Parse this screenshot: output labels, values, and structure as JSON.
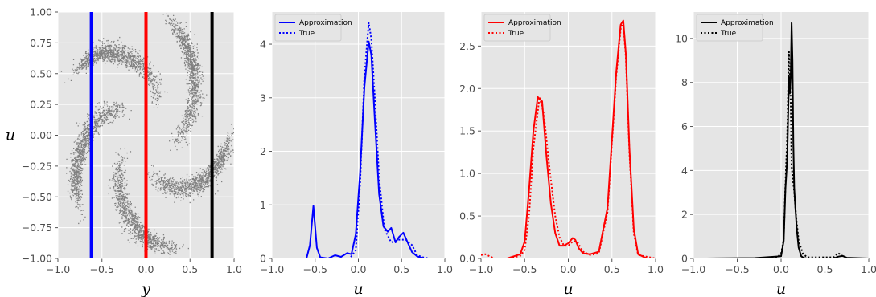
{
  "chart_data": [
    {
      "type": "scatter",
      "xlabel": "y",
      "ylabel": "u",
      "xlim": [
        -1.0,
        1.0
      ],
      "ylim": [
        -1.0,
        1.0
      ],
      "xticks": [
        "−1.0",
        "−0.5",
        "0.0",
        "0.5",
        "1.0"
      ],
      "yticks": [
        "1.00",
        "0.75",
        "0.50",
        "0.25",
        "0.00",
        "−0.25",
        "−0.50",
        "−0.75",
        "−1.00"
      ],
      "grid": true,
      "pinwheel": {
        "arms": 5,
        "color": "#808080"
      },
      "vlines": [
        {
          "x": -0.62,
          "color": "#0000ff"
        },
        {
          "x": 0.0,
          "color": "#ff0000"
        },
        {
          "x": 0.75,
          "color": "#000000"
        }
      ]
    },
    {
      "type": "line",
      "xlabel": "u",
      "xlim": [
        -1.0,
        1.0
      ],
      "ylim": [
        0,
        4.6
      ],
      "xticks": [
        "−1.0",
        "−0.5",
        "0.0",
        "0.5",
        "1.0"
      ],
      "yticks": [
        "0",
        "1",
        "2",
        "3",
        "4"
      ],
      "color": "#0000ff",
      "legend": {
        "position": "top-left",
        "entries": [
          "Approximation",
          "True"
        ]
      },
      "series": [
        {
          "name": "Approximation",
          "style": "solid",
          "x": [
            -1.0,
            -0.6,
            -0.56,
            -0.52,
            -0.48,
            -0.44,
            -0.35,
            -0.27,
            -0.2,
            -0.13,
            -0.08,
            -0.03,
            0.02,
            0.07,
            0.12,
            0.15,
            0.19,
            0.24,
            0.29,
            0.34,
            0.38,
            0.43,
            0.47,
            0.52,
            0.57,
            0.62,
            0.68,
            0.75,
            1.0
          ],
          "y": [
            0,
            0,
            0.25,
            0.98,
            0.2,
            0.02,
            0.0,
            0.06,
            0.03,
            0.1,
            0.08,
            0.45,
            1.6,
            3.2,
            4.05,
            3.8,
            2.6,
            1.2,
            0.6,
            0.5,
            0.57,
            0.3,
            0.4,
            0.48,
            0.3,
            0.12,
            0.04,
            0.0,
            0
          ]
        },
        {
          "name": "True",
          "style": "dotted",
          "x": [
            -1.0,
            -0.1,
            -0.03,
            0.02,
            0.07,
            0.12,
            0.15,
            0.19,
            0.24,
            0.3,
            0.38,
            0.47,
            0.55,
            0.62,
            0.68,
            0.75,
            0.82,
            1.0
          ],
          "y": [
            0,
            0,
            0.15,
            1.4,
            3.4,
            4.4,
            4.1,
            3.0,
            1.5,
            0.55,
            0.3,
            0.35,
            0.35,
            0.25,
            0.06,
            0.02,
            0.0,
            0
          ]
        }
      ]
    },
    {
      "type": "line",
      "xlabel": "u",
      "xlim": [
        -1.0,
        1.0
      ],
      "ylim": [
        0,
        2.9
      ],
      "xticks": [
        "−1.0",
        "−0.5",
        "0.0",
        "0.5",
        "1.0"
      ],
      "yticks": [
        "0.0",
        "0.5",
        "1.0",
        "1.5",
        "2.0",
        "2.5"
      ],
      "color": "#ff0000",
      "legend": {
        "position": "top-left",
        "entries": [
          "Approximation",
          "True"
        ]
      },
      "series": [
        {
          "name": "Approximation",
          "style": "solid",
          "x": [
            -1.0,
            -0.7,
            -0.55,
            -0.5,
            -0.45,
            -0.4,
            -0.35,
            -0.3,
            -0.25,
            -0.2,
            -0.15,
            -0.1,
            -0.05,
            0.0,
            0.05,
            0.08,
            0.12,
            0.17,
            0.25,
            0.35,
            0.45,
            0.5,
            0.55,
            0.6,
            0.63,
            0.66,
            0.7,
            0.75,
            0.8,
            0.9,
            1.0
          ],
          "y": [
            0,
            0.0,
            0.05,
            0.2,
            0.8,
            1.5,
            1.9,
            1.85,
            1.2,
            0.65,
            0.3,
            0.15,
            0.15,
            0.18,
            0.24,
            0.22,
            0.12,
            0.06,
            0.05,
            0.08,
            0.6,
            1.4,
            2.2,
            2.75,
            2.8,
            2.4,
            1.3,
            0.35,
            0.05,
            0.0,
            0
          ]
        },
        {
          "name": "True",
          "style": "dotted",
          "x": [
            -1.0,
            -0.95,
            -0.85,
            -0.7,
            -0.55,
            -0.5,
            -0.45,
            -0.4,
            -0.33,
            -0.28,
            -0.22,
            -0.15,
            -0.1,
            -0.05,
            0.0,
            0.05,
            0.1,
            0.17,
            0.25,
            0.35,
            0.45,
            0.5,
            0.55,
            0.6,
            0.63,
            0.66,
            0.7,
            0.75,
            0.8,
            1.0
          ],
          "y": [
            0.04,
            0.05,
            0.0,
            0.0,
            0.03,
            0.1,
            0.5,
            1.3,
            1.9,
            1.7,
            1.1,
            0.5,
            0.25,
            0.15,
            0.15,
            0.2,
            0.2,
            0.08,
            0.04,
            0.06,
            0.55,
            1.35,
            2.15,
            2.7,
            2.78,
            2.35,
            1.25,
            0.3,
            0.04,
            0
          ]
        }
      ]
    },
    {
      "type": "line",
      "xlabel": "u",
      "xlim": [
        -1.0,
        1.0
      ],
      "ylim": [
        0,
        11.2
      ],
      "xticks": [
        "−1.0",
        "−0.5",
        "0.0",
        "0.5",
        "1.0"
      ],
      "yticks": [
        "0",
        "2",
        "4",
        "6",
        "8",
        "10"
      ],
      "color": "#000000",
      "legend": {
        "position": "top-left",
        "entries": [
          "Approximation",
          "True"
        ]
      },
      "series": [
        {
          "name": "Approximation",
          "style": "solid",
          "x": [
            -0.85,
            -0.3,
            0.0,
            0.03,
            0.05,
            0.07,
            0.09,
            0.1,
            0.11,
            0.12,
            0.13,
            0.14,
            0.15,
            0.16,
            0.18,
            0.2,
            0.23,
            0.26,
            0.3,
            0.6,
            0.65,
            0.7,
            0.75,
            1.0
          ],
          "y": [
            0,
            0.02,
            0.1,
            0.8,
            3.2,
            4.5,
            8.3,
            7.5,
            8.2,
            10.7,
            9.0,
            5.2,
            3.2,
            2.5,
            1.3,
            0.5,
            0.1,
            0.02,
            0.0,
            0.0,
            0.08,
            0.12,
            0.03,
            0
          ]
        },
        {
          "name": "True",
          "style": "dotted",
          "x": [
            -0.85,
            -0.2,
            -0.05,
            0.0,
            0.03,
            0.05,
            0.07,
            0.09,
            0.11,
            0.12,
            0.13,
            0.15,
            0.17,
            0.2,
            0.25,
            0.3,
            0.6,
            0.65,
            0.7,
            0.75,
            1.0
          ],
          "y": [
            0,
            0.0,
            0.05,
            0.2,
            0.9,
            3.4,
            5.5,
            9.4,
            7.2,
            4.2,
            3.8,
            3.0,
            2.0,
            0.8,
            0.2,
            0.05,
            0.05,
            0.25,
            0.1,
            0.0,
            0
          ]
        }
      ]
    }
  ]
}
